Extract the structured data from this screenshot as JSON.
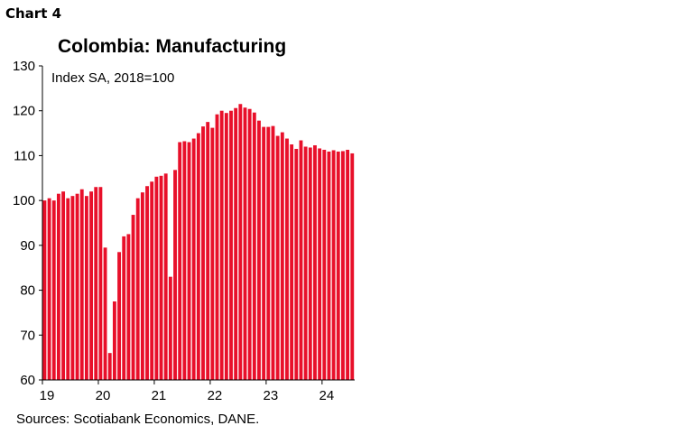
{
  "header": {
    "chart_label": "Chart 4"
  },
  "chart_data": {
    "type": "bar",
    "title": "Colombia: Manufacturing",
    "subtitle": "Index SA, 2018=100",
    "source": "Sources: Scotiabank Economics, DANE.",
    "ylim": [
      60,
      130
    ],
    "yticks": [
      60,
      70,
      80,
      90,
      100,
      110,
      120,
      130
    ],
    "ytick_labels": [
      "60",
      "70",
      "80",
      "90",
      "100",
      "110",
      "120",
      "130"
    ],
    "xtick_labels": [
      "19",
      "20",
      "21",
      "22",
      "23",
      "24"
    ],
    "bar_color": "#e8102a",
    "start": "2019-01",
    "frequency": "monthly",
    "values": [
      100,
      100.5,
      100,
      101.5,
      102,
      100.5,
      101,
      101.5,
      102.5,
      101,
      102,
      103,
      103,
      89.5,
      66,
      77.5,
      88.5,
      92,
      92.5,
      96.8,
      100.5,
      101.8,
      103.2,
      104.2,
      105.3,
      105.5,
      106,
      83,
      106.8,
      113,
      113.2,
      113,
      113.8,
      115,
      116.5,
      117.5,
      116.2,
      119.2,
      120,
      119.5,
      120,
      120.6,
      121.5,
      120.7,
      120.4,
      119.6,
      117.8,
      116.4,
      116.4,
      116.6,
      114.4,
      115.2,
      113.8,
      112.5,
      111.5,
      113.4,
      112,
      111.8,
      112.3,
      111.6,
      111.3,
      110.9,
      111.2,
      110.9,
      111,
      111.3,
      110.5
    ]
  }
}
